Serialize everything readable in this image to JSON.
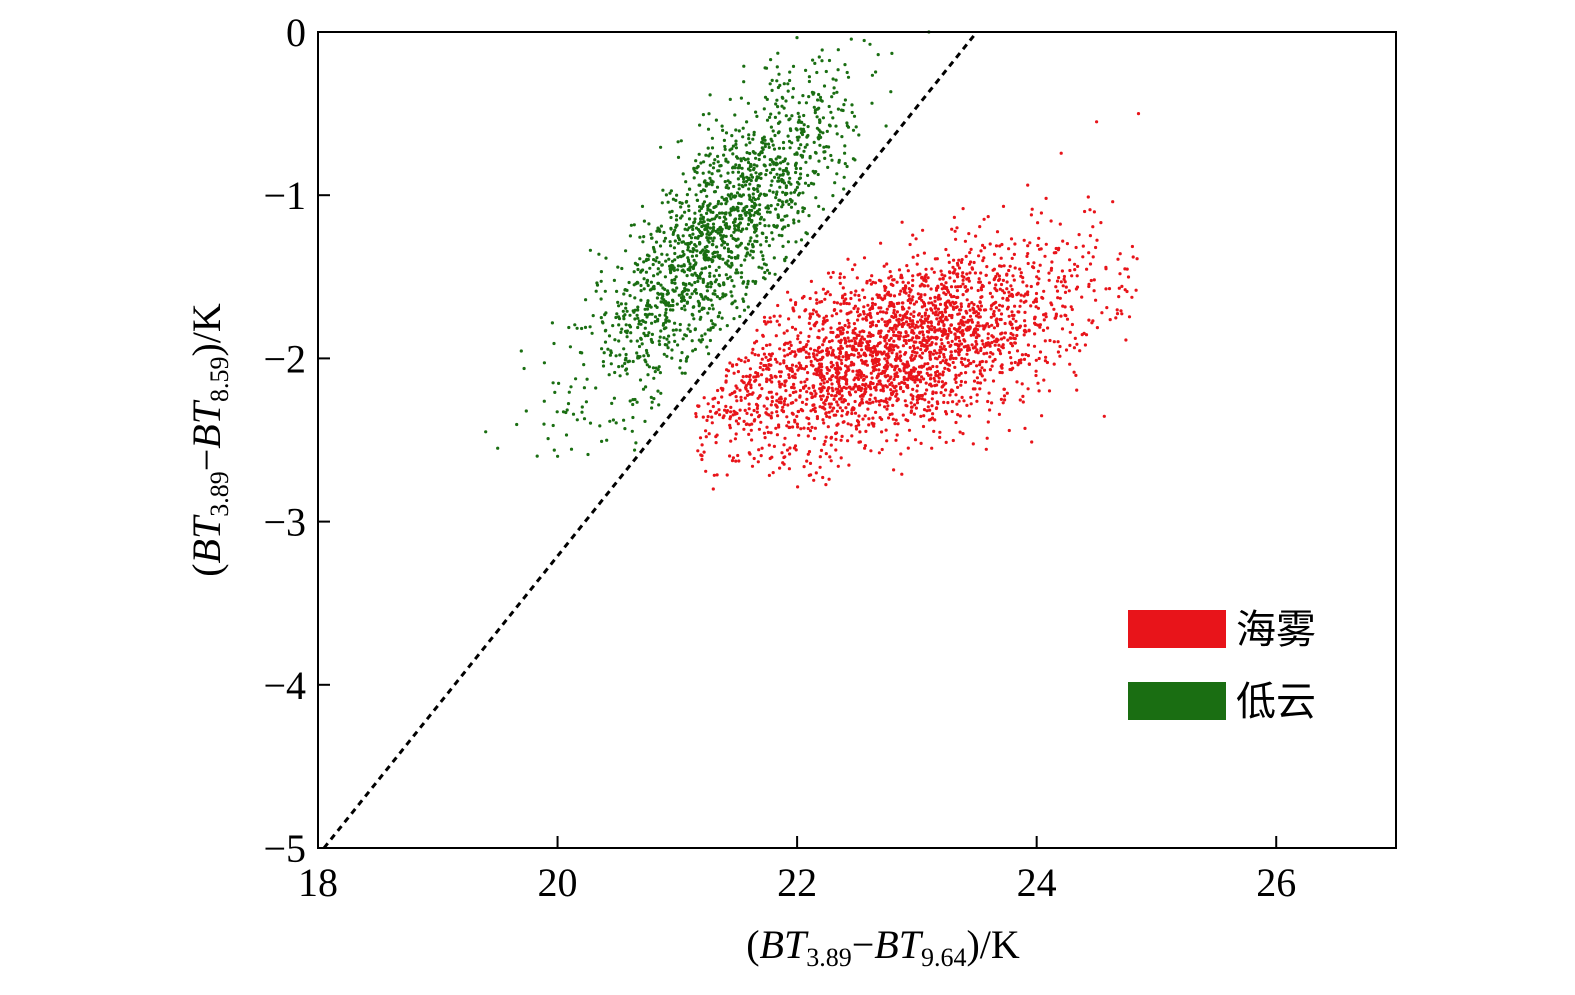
{
  "chart_data": {
    "type": "scatter",
    "xlim": [
      18,
      27
    ],
    "ylim": [
      -5,
      0
    ],
    "x_ticks": [
      18,
      20,
      22,
      24,
      26
    ],
    "y_ticks": [
      0,
      -1,
      -2,
      -3,
      -4,
      -5
    ],
    "x_tick_labels": [
      "18",
      "20",
      "22",
      "24",
      "26"
    ],
    "y_tick_labels": [
      "0",
      "−1",
      "−2",
      "−3",
      "−4",
      "−5"
    ],
    "xlabel": {
      "open": "(",
      "term1": "BT",
      "sub1": "3.89",
      "minus": "−",
      "term2": "BT",
      "sub2": "9.64",
      "close": ")/K"
    },
    "ylabel": {
      "open": "(",
      "term1": "BT",
      "sub1": "3.89",
      "minus": "−",
      "term2": "BT",
      "sub2": "8.59",
      "close": ")/K"
    },
    "grid": false,
    "legend_position": "lower-right",
    "reference_line": {
      "style": "dashed",
      "color": "#000000",
      "from": [
        18.05,
        -5.0
      ],
      "to": [
        23.5,
        0.0
      ]
    },
    "series": [
      {
        "name": "海雾",
        "color": "#e8141a",
        "marker": "dot",
        "cluster": {
          "count": 2600,
          "center": [
            22.8,
            -1.95
          ],
          "spread": [
            0.85,
            0.32
          ],
          "correlation": 0.55,
          "x_range": [
            21.15,
            24.85
          ],
          "y_range": [
            -2.8,
            -0.5
          ]
        },
        "sample_points": [
          [
            21.3,
            -2.8
          ],
          [
            21.8,
            -2.7
          ],
          [
            22.1,
            -2.4
          ],
          [
            22.5,
            -2.1
          ],
          [
            23.0,
            -2.2
          ],
          [
            23.5,
            -1.8
          ],
          [
            24.0,
            -1.5
          ],
          [
            24.4,
            -1.1
          ],
          [
            24.5,
            -0.55
          ],
          [
            24.85,
            -0.5
          ]
        ]
      },
      {
        "name": "低云",
        "color": "#1a6e12",
        "marker": "dot",
        "cluster": {
          "count": 1600,
          "center": [
            21.35,
            -1.25
          ],
          "spread": [
            0.55,
            0.5
          ],
          "correlation": 0.8,
          "x_range": [
            19.35,
            23.3
          ],
          "y_range": [
            -2.6,
            0.0
          ]
        },
        "sample_points": [
          [
            19.4,
            -2.45
          ],
          [
            19.5,
            -2.55
          ],
          [
            20.0,
            -2.6
          ],
          [
            20.4,
            -1.9
          ],
          [
            20.9,
            -1.5
          ],
          [
            21.3,
            -1.2
          ],
          [
            21.6,
            -1.0
          ],
          [
            22.0,
            -0.6
          ],
          [
            22.4,
            -0.2
          ],
          [
            23.1,
            0.0
          ]
        ]
      }
    ]
  }
}
